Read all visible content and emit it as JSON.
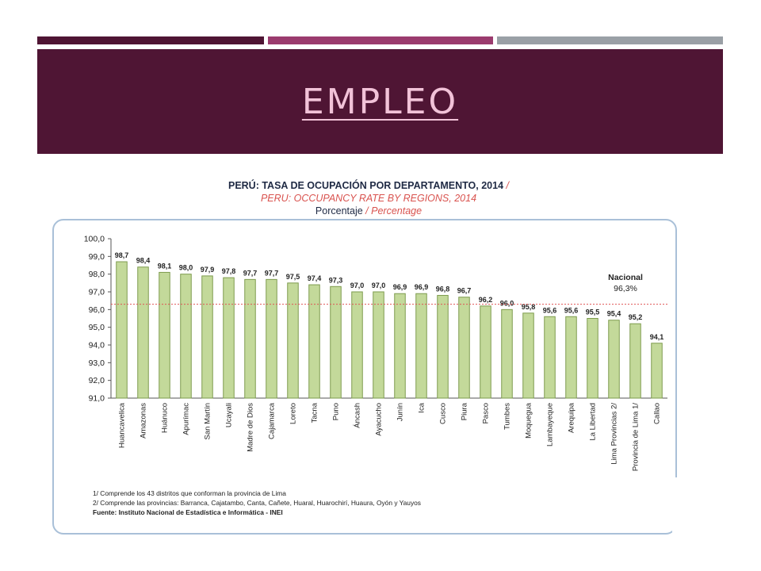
{
  "slide": {
    "title": "EMPLEO",
    "colors": {
      "header_bg": "#4f1534",
      "title": "#f2c2d8",
      "strip1": "#4f1534",
      "strip2": "#9b3b6e",
      "strip3": "#9aa0a6",
      "bar_fill": "#c3d99a",
      "bar_stroke": "#7e9c4e",
      "reference_line": "#e05555",
      "subtitle_color": "#d9534f"
    }
  },
  "chart_data": {
    "type": "bar",
    "title": "PERÚ: TASA DE OCUPACIÓN POR DEPARTAMENTO, 2014",
    "title_separator": "/",
    "subtitle_en": "PERU: OCCUPANCY RATE BY REGIONS, 2014",
    "unit_es": "Porcentaje",
    "unit_en": "Percentage",
    "categories": [
      "Huancavelica",
      "Amazonas",
      "Huánuco",
      "Apurímac",
      "San Martín",
      "Ucayali",
      "Madre de Dios",
      "Cajamarca",
      "Loreto",
      "Tacna",
      "Puno",
      "Áncash",
      "Ayacucho",
      "Junín",
      "Ica",
      "Cusco",
      "Piura",
      "Pasco",
      "Tumbes",
      "Moquegua",
      "Lambayeque",
      "Arequipa",
      "La Libertad",
      "Lima Provincias 2/",
      "Provincia de Lima 1/",
      "Callao"
    ],
    "values": [
      98.7,
      98.4,
      98.1,
      98.0,
      97.9,
      97.8,
      97.7,
      97.7,
      97.5,
      97.4,
      97.3,
      97.0,
      97.0,
      96.9,
      96.9,
      96.8,
      96.7,
      96.2,
      96.0,
      95.8,
      95.6,
      95.6,
      95.5,
      95.4,
      95.2,
      94.1
    ],
    "value_labels": [
      "98,7",
      "98,4",
      "98,1",
      "98,0",
      "97,9",
      "97,8",
      "97,7",
      "97,7",
      "97,5",
      "97,4",
      "97,3",
      "97,0",
      "97,0",
      "96,9",
      "96,9",
      "96,8",
      "96,7",
      "96,2",
      "96,0",
      "95,8",
      "95,6",
      "95,6",
      "95,5",
      "95,4",
      "95,2",
      "94,1"
    ],
    "ylim": [
      91.0,
      100.0
    ],
    "yticks": [
      91.0,
      92.0,
      93.0,
      94.0,
      95.0,
      96.0,
      97.0,
      98.0,
      99.0,
      100.0
    ],
    "ytick_labels": [
      "91,0",
      "92,0",
      "93,0",
      "94,0",
      "95,0",
      "96,0",
      "97,0",
      "98,0",
      "99,0",
      "100,0"
    ],
    "reference": {
      "label": "Nacional",
      "value": 96.3,
      "value_label": "96,3%"
    },
    "notes": [
      "1/ Comprende los 43 distritos que conforman la provincia de Lima",
      "2/ Comprende las provincias: Barranca, Cajatambo, Canta, Cañete, Huaral, Huarochirí, Huaura, Oyón y Yauyos"
    ],
    "source": "Fuente: Instituto Nacional de Estadística e Informática - INEI"
  }
}
